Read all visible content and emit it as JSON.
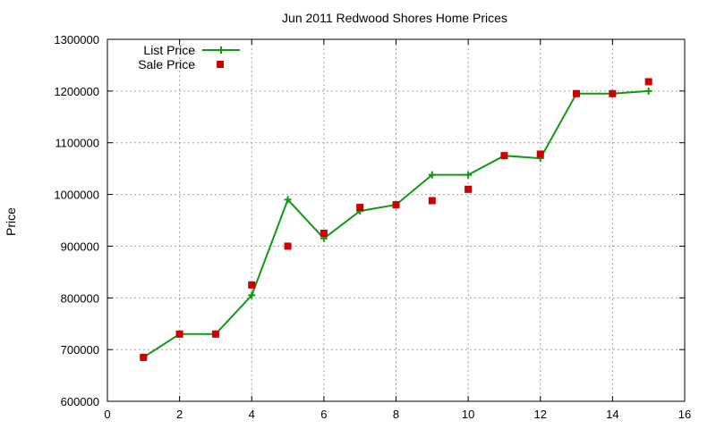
{
  "chart_data": {
    "type": "line",
    "title": "Jun 2011 Redwood Shores Home Prices",
    "xlabel": "",
    "ylabel": "Price",
    "xlim": [
      0,
      16
    ],
    "ylim": [
      600000,
      1300000
    ],
    "x_ticks": [
      0,
      2,
      4,
      6,
      8,
      10,
      12,
      14,
      16
    ],
    "y_ticks": [
      600000,
      700000,
      800000,
      900000,
      1000000,
      1100000,
      1200000,
      1300000
    ],
    "grid": true,
    "legend_position": "top-left",
    "series": [
      {
        "name": "List Price",
        "style": "line-with-plus-markers",
        "color": "#119911",
        "x": [
          1,
          2,
          3,
          4,
          5,
          6,
          7,
          8,
          9,
          10,
          11,
          12,
          13,
          14,
          15
        ],
        "values": [
          685000,
          730000,
          730000,
          805000,
          990000,
          915000,
          968000,
          980000,
          1038000,
          1038000,
          1075000,
          1070000,
          1195000,
          1195000,
          1200000
        ]
      },
      {
        "name": "Sale Price",
        "style": "square-markers",
        "color": "#cc0000",
        "x": [
          1,
          2,
          3,
          4,
          5,
          6,
          7,
          8,
          9,
          10,
          11,
          12,
          13,
          14,
          15
        ],
        "values": [
          685000,
          730000,
          730000,
          825000,
          900000,
          925000,
          975000,
          980000,
          988000,
          1010000,
          1075000,
          1078000,
          1195000,
          1195000,
          1218000
        ]
      }
    ]
  }
}
